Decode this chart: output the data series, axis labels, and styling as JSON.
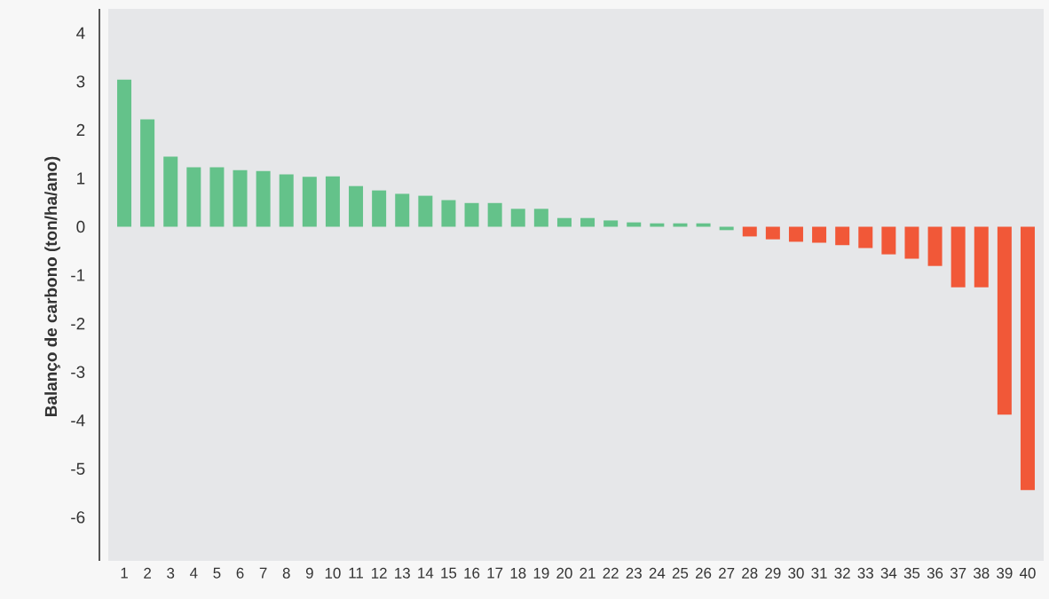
{
  "chart_data": {
    "type": "bar",
    "ylabel": "Balanço de carbono (ton/ha/ano)",
    "categories": [
      "1",
      "2",
      "3",
      "4",
      "5",
      "6",
      "7",
      "8",
      "9",
      "10",
      "11",
      "12",
      "13",
      "14",
      "15",
      "16",
      "17",
      "18",
      "19",
      "20",
      "21",
      "22",
      "23",
      "24",
      "25",
      "26",
      "27",
      "28",
      "29",
      "30",
      "31",
      "32",
      "33",
      "34",
      "35",
      "36",
      "37",
      "38",
      "39",
      "40"
    ],
    "values": [
      3.04,
      2.22,
      1.45,
      1.23,
      1.23,
      1.17,
      1.15,
      1.08,
      1.03,
      1.04,
      0.84,
      0.75,
      0.68,
      0.64,
      0.55,
      0.49,
      0.49,
      0.37,
      0.37,
      0.18,
      0.18,
      0.13,
      0.09,
      0.07,
      0.07,
      0.07,
      -0.07,
      -0.2,
      -0.26,
      -0.31,
      -0.33,
      -0.38,
      -0.44,
      -0.57,
      -0.66,
      -0.81,
      -1.25,
      -1.25,
      -3.88,
      -5.44
    ],
    "colors": [
      "#64c28a",
      "#64c28a",
      "#64c28a",
      "#64c28a",
      "#64c28a",
      "#64c28a",
      "#64c28a",
      "#64c28a",
      "#64c28a",
      "#64c28a",
      "#64c28a",
      "#64c28a",
      "#64c28a",
      "#64c28a",
      "#64c28a",
      "#64c28a",
      "#64c28a",
      "#64c28a",
      "#64c28a",
      "#64c28a",
      "#64c28a",
      "#64c28a",
      "#64c28a",
      "#64c28a",
      "#64c28a",
      "#64c28a",
      "#64c28a",
      "#f15838",
      "#f15838",
      "#f15838",
      "#f15838",
      "#f15838",
      "#f15838",
      "#f15838",
      "#f15838",
      "#f15838",
      "#f15838",
      "#f15838",
      "#f15838",
      "#f15838"
    ],
    "ylim": [
      -6.9,
      4.5
    ],
    "yticks": [
      -6,
      -5,
      -4,
      -3,
      -2,
      -1,
      0,
      1,
      2,
      3,
      4
    ],
    "grid": false
  }
}
